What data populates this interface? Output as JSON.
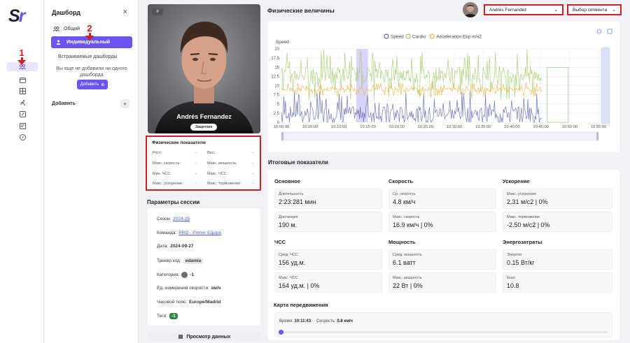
{
  "brand": {
    "logo_s": "S",
    "logo_r": "r"
  },
  "annotations": {
    "marker_1": "1",
    "marker_2": "2"
  },
  "sidebar_panel": {
    "title": "Дашборд",
    "nav_all": "Общий",
    "nav_individual": "Индивидуальный",
    "embedded_title": "Встраиваемые дашборды",
    "embedded_note": "Вы еще не добавили ни одного дашборда",
    "add_button": "Добавить",
    "add_section_label": "Добавить"
  },
  "player": {
    "name": "Andrés Fernandez",
    "role": "Защитник",
    "tag": "#"
  },
  "physical": {
    "title": "Физические показатели",
    "rows": [
      {
        "label": "Рост:",
        "value": "-"
      },
      {
        "label": "Вес:",
        "value": "-"
      },
      {
        "label": "Макс. скорость:",
        "value": "-"
      },
      {
        "label": "Макс. мощность:",
        "value": "-"
      },
      {
        "label": "Мин. ЧСС:",
        "value": "-"
      },
      {
        "label": "Макс. ЧСС:",
        "value": "-"
      },
      {
        "label": "Макс. ускорение:",
        "value": "-"
      },
      {
        "label": "Макс. торможение:",
        "value": "-"
      }
    ]
  },
  "session": {
    "title": "Параметры сессии",
    "season_label": "Сезон:",
    "season": "2024-25",
    "team_label": "Команда:",
    "team": "PRO - Primer Equipo",
    "date_label": "Дата:",
    "date": "2024-09-27",
    "tracker_label": "Трекер код:",
    "tracker": "edamia",
    "category_label": "Категория:",
    "category": "-1",
    "speed_unit_label": "Ед. измерения скорости:",
    "speed_unit": "км/ч",
    "timezone_label": "Часовой пояс:",
    "timezone": "Europe/Madrid",
    "tags_label": "Теги:",
    "tags": "-1",
    "view_data_button": "Просмотр данных"
  },
  "chart_header": {
    "title": "Физические величины",
    "player_select": "Andrés Fernandez",
    "segment_select": "Выбор сегмента"
  },
  "chart_data": {
    "type": "line",
    "ylabel": "Speed",
    "ylim": [
      0,
      20
    ],
    "yticks": [
      0,
      2.5,
      5,
      7.5,
      10,
      12.5,
      15,
      17.5,
      20
    ],
    "xticks": [
      "10:00:00",
      "10:05:00",
      "10:10:00",
      "10:15:00",
      "10:20:00",
      "10:25:00",
      "10:30:00",
      "10:35:00",
      "10:40:00",
      "10:45:00",
      "10:50:00",
      "10:55:00"
    ],
    "legend_position": "top-center",
    "grid": true,
    "series": [
      {
        "name": "Speed",
        "color": "#5b63b7",
        "baseline": 2.5,
        "amplitude": 6
      },
      {
        "name": "Cardio",
        "color": "#9ccc65",
        "baseline": 13,
        "amplitude": 7
      },
      {
        "name": "Acceleration Exp m/s2",
        "color": "#f5b342",
        "baseline": 9,
        "amplitude": 2
      }
    ],
    "highlight_range": [
      "10:13:00",
      "10:15:00"
    ]
  },
  "summary": {
    "title": "Итоговые показатели",
    "groups": [
      {
        "title": "Основное",
        "metrics": [
          {
            "label": "Длительность",
            "value": "2:23:281 мин"
          },
          {
            "label": "Дистанция",
            "value": "190 м."
          }
        ]
      },
      {
        "title": "Скорость",
        "metrics": [
          {
            "label": "Ср. скорость",
            "value": "4.8 км/ч"
          },
          {
            "label": "Макс. скорость",
            "value": "16.9 км/ч | 0%"
          }
        ]
      },
      {
        "title": "Ускорение",
        "metrics": [
          {
            "label": "Макс. ускорение",
            "value": "2.31 м/с2 | 0%"
          },
          {
            "label": "Макс. торможение",
            "value": "-2.50 м/с2 | 0%"
          }
        ]
      },
      {
        "title": "ЧСС",
        "metrics": [
          {
            "label": "Сред. ЧСС",
            "value": "156 уд.м."
          },
          {
            "label": "Макс. ЧСС",
            "value": "164 уд.м. | 0%"
          }
        ]
      },
      {
        "title": "Мощность",
        "metrics": [
          {
            "label": "Сред. мощность",
            "value": "6.1 ватт"
          },
          {
            "label": "Макс. мощность",
            "value": "22 Вт | 0%"
          }
        ]
      },
      {
        "title": "Энергозатраты",
        "metrics": [
          {
            "label": "Энергия",
            "value": "0.15 Вт/кг"
          },
          {
            "label": "Ккал",
            "value": "10.8"
          }
        ]
      }
    ]
  },
  "movement_map": {
    "title": "Карта передвижения",
    "time_label": "Время:",
    "time": "10:11:43",
    "speed_label": "Скорость:",
    "speed": "0.8 км/ч"
  }
}
